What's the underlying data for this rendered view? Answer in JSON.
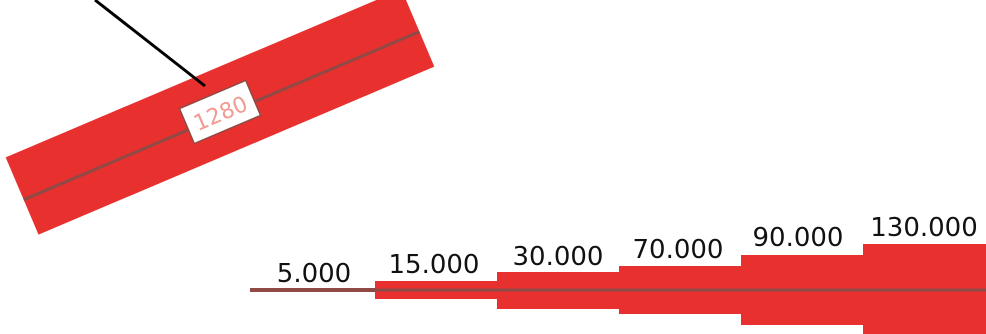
{
  "segment_label": "1280",
  "legend": {
    "steps": [
      {
        "label": "5.000"
      },
      {
        "label": "15.000"
      },
      {
        "label": "30.000"
      },
      {
        "label": "70.000"
      },
      {
        "label": "90.000"
      },
      {
        "label": "130.000"
      }
    ]
  },
  "colors": {
    "flow": "#e8302e",
    "centerline": "#8f4a45",
    "label_text": "#f09a92",
    "label_box_border": "#8f4a45",
    "leader": "#000000",
    "legend_text": "#111111"
  }
}
